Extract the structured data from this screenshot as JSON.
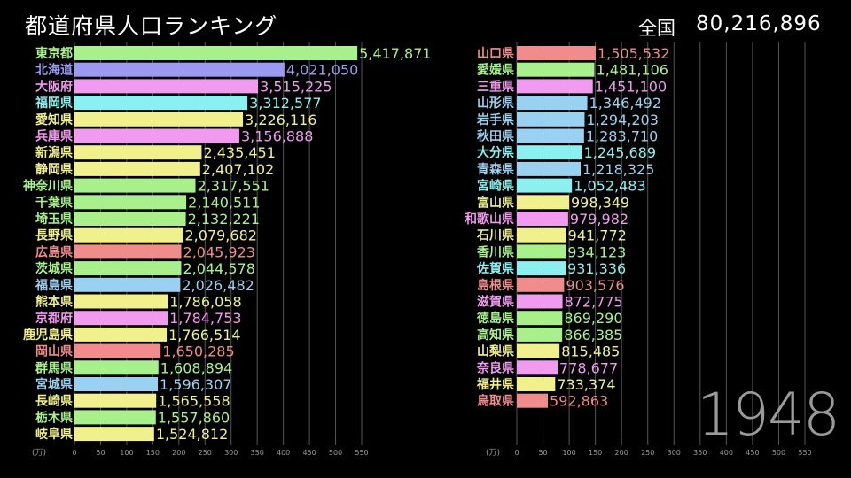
{
  "header": {
    "title": "都道府県人口ランキング",
    "total_label": "全国",
    "total_value": "80,216,896",
    "year": "1948"
  },
  "chart_data": [
    {
      "type": "bar",
      "orientation": "horizontal",
      "axis_unit": "(万)",
      "xlim": [
        0,
        550
      ],
      "xticks": [
        0,
        50,
        100,
        150,
        200,
        250,
        300,
        350,
        400,
        450,
        500,
        550
      ],
      "grid": true,
      "categories": [
        "東京都",
        "北海道",
        "大阪府",
        "福岡県",
        "愛知県",
        "兵庫県",
        "新潟県",
        "静岡県",
        "神奈川県",
        "千葉県",
        "埼玉県",
        "長野県",
        "広島県",
        "茨城県",
        "福島県",
        "熊本県",
        "京都府",
        "鹿児島県",
        "岡山県",
        "群馬県",
        "宮城県",
        "長崎県",
        "栃木県",
        "岐阜県"
      ],
      "labels": [
        "5,417,871",
        "4,021,050",
        "3,515,225",
        "3,312,577",
        "3,226,116",
        "3,156,888",
        "2,435,451",
        "2,407,102",
        "2,317,551",
        "2,140,511",
        "2,132,221",
        "2,079,682",
        "2,045,923",
        "2,044,578",
        "2,026,482",
        "1,786,058",
        "1,784,753",
        "1,766,514",
        "1,650,285",
        "1,608,894",
        "1,596,307",
        "1,565,558",
        "1,557,860",
        "1,524,812"
      ],
      "values": [
        5417871,
        4021050,
        3515225,
        3312577,
        3226116,
        3156888,
        2435451,
        2407102,
        2317551,
        2140511,
        2132221,
        2079682,
        2045923,
        2044578,
        2026482,
        1786058,
        1784753,
        1766514,
        1650285,
        1608894,
        1596307,
        1565558,
        1557860,
        1524812
      ],
      "colors": [
        "#a8f08c",
        "#9a9af0",
        "#f09af0",
        "#8cf0f0",
        "#f0f08c",
        "#f09af0",
        "#f0f08c",
        "#f0f08c",
        "#a8f08c",
        "#a8f08c",
        "#a8f08c",
        "#f0f08c",
        "#f08c8c",
        "#a8f08c",
        "#9ad0f0",
        "#f0f08c",
        "#f09af0",
        "#f0f08c",
        "#f08c8c",
        "#a8f08c",
        "#9ad0f0",
        "#f0f08c",
        "#a8f08c",
        "#f0f08c"
      ]
    },
    {
      "type": "bar",
      "orientation": "horizontal",
      "axis_unit": "(万)",
      "xlim": [
        0,
        550
      ],
      "xticks": [
        0,
        50,
        100,
        150,
        200,
        250,
        300,
        350,
        400,
        450,
        500,
        550
      ],
      "grid": true,
      "categories": [
        "山口県",
        "愛媛県",
        "三重県",
        "山形県",
        "岩手県",
        "秋田県",
        "大分県",
        "青森県",
        "宮崎県",
        "富山県",
        "和歌山県",
        "石川県",
        "香川県",
        "佐賀県",
        "島根県",
        "滋賀県",
        "徳島県",
        "高知県",
        "山梨県",
        "奈良県",
        "福井県",
        "鳥取県"
      ],
      "labels": [
        "1,505,532",
        "1,481,106",
        "1,451,100",
        "1,346,492",
        "1,294,203",
        "1,283,710",
        "1,245,689",
        "1,218,325",
        "1,052,483",
        "998,349",
        "979,982",
        "941,772",
        "934,123",
        "931,336",
        "903,576",
        "872,775",
        "869,290",
        "866,385",
        "815,485",
        "778,677",
        "733,374",
        "592,863"
      ],
      "values": [
        1505532,
        1481106,
        1451100,
        1346492,
        1294203,
        1283710,
        1245689,
        1218325,
        1052483,
        998349,
        979982,
        941772,
        934123,
        931336,
        903576,
        872775,
        869290,
        866385,
        815485,
        778677,
        733374,
        592863
      ],
      "colors": [
        "#f08c8c",
        "#a8f08c",
        "#f09af0",
        "#9ad0f0",
        "#9ad0f0",
        "#9ad0f0",
        "#8cf0f0",
        "#9ad0f0",
        "#8cf0f0",
        "#f0f08c",
        "#f09af0",
        "#f0f08c",
        "#a8f08c",
        "#8cf0f0",
        "#f08c8c",
        "#f09af0",
        "#a8f08c",
        "#a8f08c",
        "#f0f08c",
        "#f09af0",
        "#f0f08c",
        "#f08c8c"
      ]
    }
  ]
}
